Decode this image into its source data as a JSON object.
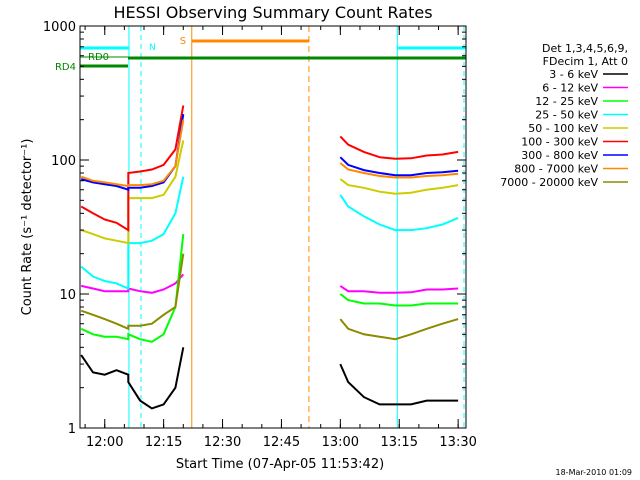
{
  "chart_data": {
    "type": "line",
    "title": "HESSI Observing Summary Count Rates",
    "xlabel": "Start Time (07-Apr-05 11:53:42)",
    "ylabel": "Count Rate (s⁻¹ detector⁻¹)",
    "yscale": "log",
    "ylim": [
      1,
      1000
    ],
    "xlim": [
      "11:53:42",
      "13:32:00"
    ],
    "x_ticks": [
      "12:00",
      "12:15",
      "12:30",
      "12:45",
      "13:00",
      "13:15",
      "13:30"
    ],
    "y_ticks": [
      "1",
      "10",
      "100",
      "1000"
    ],
    "legend_header": [
      "Det 1,3,4,5,6,9,",
      "FDecim 1, Att 0"
    ],
    "legend_position": "right",
    "grid": false,
    "x": [
      "11:54",
      "11:57",
      "12:00",
      "12:03",
      "12:06",
      "12:06",
      "12:09",
      "12:12",
      "12:15",
      "12:18",
      "12:20",
      "13:00",
      "13:02",
      "13:06",
      "13:10",
      "13:14",
      "13:18",
      "13:22",
      "13:26",
      "13:30"
    ],
    "series": [
      {
        "name": "3 - 6 keV",
        "color": "#000000",
        "values": [
          3.5,
          2.6,
          2.5,
          2.7,
          2.5,
          2.2,
          1.6,
          1.4,
          1.5,
          2.0,
          4.0,
          3.0,
          2.2,
          1.7,
          1.5,
          1.5,
          1.5,
          1.6,
          1.6,
          1.6
        ]
      },
      {
        "name": "6 - 12 keV",
        "color": "#ff00ff",
        "values": [
          11.5,
          11,
          10.5,
          10.5,
          10.5,
          11,
          10.5,
          10.2,
          10.8,
          12,
          14,
          11.5,
          10.5,
          10.5,
          10.2,
          10.2,
          10.3,
          10.8,
          10.8,
          11
        ]
      },
      {
        "name": "12 - 25 keV",
        "color": "#00ff00",
        "values": [
          5.5,
          5,
          4.8,
          4.8,
          4.6,
          5,
          4.6,
          4.4,
          5,
          8,
          28,
          10,
          9,
          8.5,
          8.5,
          8.2,
          8.2,
          8.5,
          8.5,
          8.5
        ]
      },
      {
        "name": "25 - 50 keV",
        "color": "#00ffff",
        "values": [
          16,
          13.5,
          12.5,
          12,
          11,
          24,
          24,
          25,
          28,
          40,
          75,
          55,
          45,
          38,
          33,
          30,
          30,
          31,
          33,
          37
        ]
      },
      {
        "name": "50 - 100 keV",
        "color": "#cccc00",
        "values": [
          30,
          28,
          26,
          25,
          24,
          52,
          52,
          52,
          55,
          75,
          140,
          72,
          65,
          62,
          58,
          56,
          57,
          60,
          62,
          65
        ]
      },
      {
        "name": "100 - 300 keV",
        "color": "#ff0000",
        "values": [
          45,
          40,
          36,
          34,
          30,
          80,
          82,
          85,
          92,
          120,
          255,
          150,
          130,
          115,
          105,
          102,
          103,
          108,
          110,
          115
        ]
      },
      {
        "name": "300 - 800 keV",
        "color": "#0000ff",
        "values": [
          72,
          68,
          66,
          64,
          60,
          62,
          62,
          64,
          68,
          90,
          220,
          105,
          92,
          84,
          80,
          77,
          77,
          80,
          81,
          83
        ]
      },
      {
        "name": "800 - 7000 keV",
        "color": "#ff8800",
        "values": [
          75,
          70,
          68,
          66,
          64,
          65,
          65,
          66,
          70,
          90,
          200,
          95,
          85,
          80,
          76,
          74,
          74,
          76,
          77,
          79
        ]
      },
      {
        "name": "7000 - 20000 keV",
        "color": "#8b8b00",
        "values": [
          7.5,
          7,
          6.5,
          6,
          5.5,
          5.8,
          5.8,
          6,
          7,
          8,
          20,
          6.5,
          5.5,
          5,
          4.8,
          4.6,
          5,
          5.5,
          6,
          6.5
        ]
      }
    ],
    "annotations": {
      "night_intervals": [
        [
          "11:53:42",
          "12:06:10"
        ],
        [
          "13:14:30",
          "13:32:00"
        ]
      ],
      "saa_interval": [
        "12:22:10",
        "12:52:00"
      ],
      "radiation_detector_flags": [
        "RD0",
        "RD4"
      ],
      "bar_labels": [
        "N",
        "S"
      ]
    }
  },
  "timestamp": "18-Mar-2010 01:09",
  "colors": {
    "night": "#00ffff",
    "saa": "#ff8800",
    "rd4": "#008800",
    "axis": "#000000"
  }
}
